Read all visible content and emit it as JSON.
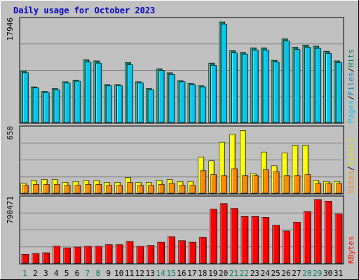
{
  "title": "Daily usage for October 2023",
  "colors": {
    "hits": "#008060",
    "files": "#00c8f0",
    "pages": "#00e0ff",
    "visits": "#ffff00",
    "sites": "#ff8800",
    "kbytes": "#ff0000",
    "weekday_label": "#000000",
    "weekend_label": "#008060"
  },
  "chart_data": [
    {
      "type": "bar",
      "panel": "hits-files-pages",
      "side_labels": [
        {
          "text": "Pages",
          "color": "#00c8e0"
        },
        {
          "text": "/",
          "color": "#000000"
        },
        {
          "text": "Files",
          "color": "#0080c0"
        },
        {
          "text": "/",
          "color": "#000000"
        },
        {
          "text": "Hits",
          "color": "#008060"
        }
      ],
      "y_tick": "17946",
      "ymax": 17946,
      "categories": [
        "1",
        "2",
        "3",
        "4",
        "5",
        "6",
        "7",
        "8",
        "9",
        "10",
        "11",
        "12",
        "13",
        "14",
        "15",
        "16",
        "17",
        "18",
        "19",
        "20",
        "21",
        "22",
        "23",
        "24",
        "25",
        "26",
        "27",
        "28",
        "29",
        "30",
        "31"
      ],
      "series": [
        {
          "name": "Hits",
          "values": [
            9100,
            6300,
            5500,
            6000,
            7200,
            7500,
            11100,
            10900,
            6700,
            6700,
            10600,
            7200,
            6000,
            9500,
            8800,
            7400,
            6900,
            6500,
            10500,
            17800,
            12700,
            12400,
            13200,
            13200,
            11000,
            14800,
            13300,
            13700,
            13500,
            12600,
            10900
          ]
        },
        {
          "name": "Files",
          "values": [
            8800,
            6100,
            5300,
            5800,
            7000,
            7300,
            10700,
            10500,
            6500,
            6500,
            10200,
            7000,
            5800,
            9200,
            8500,
            7200,
            6700,
            6300,
            10100,
            17400,
            12300,
            12100,
            12800,
            12800,
            10700,
            14400,
            12900,
            13300,
            13100,
            12200,
            10600
          ]
        }
      ]
    },
    {
      "type": "bar",
      "panel": "visits-sites",
      "side_labels": [
        {
          "text": "Sites",
          "color": "#ff8800"
        },
        {
          "text": "/",
          "color": "#000000"
        },
        {
          "text": "Visits",
          "color": "#e0e000"
        }
      ],
      "y_tick": "650",
      "ymax": 650,
      "categories": [
        "1",
        "2",
        "3",
        "4",
        "5",
        "6",
        "7",
        "8",
        "9",
        "10",
        "11",
        "12",
        "13",
        "14",
        "15",
        "16",
        "17",
        "18",
        "19",
        "20",
        "21",
        "22",
        "23",
        "24",
        "25",
        "26",
        "27",
        "28",
        "29",
        "30",
        "31"
      ],
      "series": [
        {
          "name": "Visits",
          "values": [
            100,
            130,
            140,
            140,
            110,
            120,
            130,
            130,
            110,
            110,
            160,
            110,
            110,
            130,
            140,
            120,
            120,
            370,
            330,
            520,
            600,
            640,
            200,
            420,
            280,
            410,
            490,
            490,
            130,
            120,
            120
          ]
        },
        {
          "name": "Sites",
          "values": [
            80,
            90,
            90,
            90,
            80,
            80,
            90,
            90,
            80,
            80,
            110,
            80,
            80,
            90,
            100,
            80,
            80,
            230,
            190,
            180,
            250,
            180,
            180,
            240,
            220,
            180,
            180,
            190,
            100,
            100,
            100
          ]
        }
      ]
    },
    {
      "type": "bar",
      "panel": "kbytes",
      "side_labels": [
        {
          "text": "KBytes",
          "color": "#ff0000"
        }
      ],
      "y_tick": "790471",
      "ymax": 790471,
      "categories": [
        "1",
        "2",
        "3",
        "4",
        "5",
        "6",
        "7",
        "8",
        "9",
        "10",
        "11",
        "12",
        "13",
        "14",
        "15",
        "16",
        "17",
        "18",
        "19",
        "20",
        "21",
        "22",
        "23",
        "24",
        "25",
        "26",
        "27",
        "28",
        "29",
        "30",
        "31"
      ],
      "series": [
        {
          "name": "KBytes",
          "values": [
            110000,
            120000,
            130000,
            210000,
            190000,
            200000,
            210000,
            210000,
            230000,
            230000,
            270000,
            210000,
            220000,
            260000,
            330000,
            280000,
            260000,
            320000,
            670000,
            740000,
            680000,
            580000,
            580000,
            570000,
            470000,
            400000,
            510000,
            640000,
            800000,
            770000,
            610000
          ]
        }
      ]
    }
  ],
  "day_labels": [
    {
      "text": "1",
      "weekend": true
    },
    {
      "text": "2",
      "weekend": false
    },
    {
      "text": "3",
      "weekend": false
    },
    {
      "text": "4",
      "weekend": false
    },
    {
      "text": "5",
      "weekend": false
    },
    {
      "text": "6",
      "weekend": false
    },
    {
      "text": "7",
      "weekend": true
    },
    {
      "text": "8",
      "weekend": true
    },
    {
      "text": "9",
      "weekend": false
    },
    {
      "text": "10",
      "weekend": false
    },
    {
      "text": "11",
      "weekend": false
    },
    {
      "text": "12",
      "weekend": false
    },
    {
      "text": "13",
      "weekend": false
    },
    {
      "text": "14",
      "weekend": true
    },
    {
      "text": "15",
      "weekend": true
    },
    {
      "text": "16",
      "weekend": false
    },
    {
      "text": "17",
      "weekend": false
    },
    {
      "text": "18",
      "weekend": false
    },
    {
      "text": "19",
      "weekend": false
    },
    {
      "text": "20",
      "weekend": false
    },
    {
      "text": "21",
      "weekend": true
    },
    {
      "text": "22",
      "weekend": true
    },
    {
      "text": "23",
      "weekend": false
    },
    {
      "text": "24",
      "weekend": false
    },
    {
      "text": "25",
      "weekend": false
    },
    {
      "text": "26",
      "weekend": false
    },
    {
      "text": "27",
      "weekend": false
    },
    {
      "text": "28",
      "weekend": true
    },
    {
      "text": "29",
      "weekend": true
    },
    {
      "text": "30",
      "weekend": false
    },
    {
      "text": "31",
      "weekend": false
    }
  ]
}
